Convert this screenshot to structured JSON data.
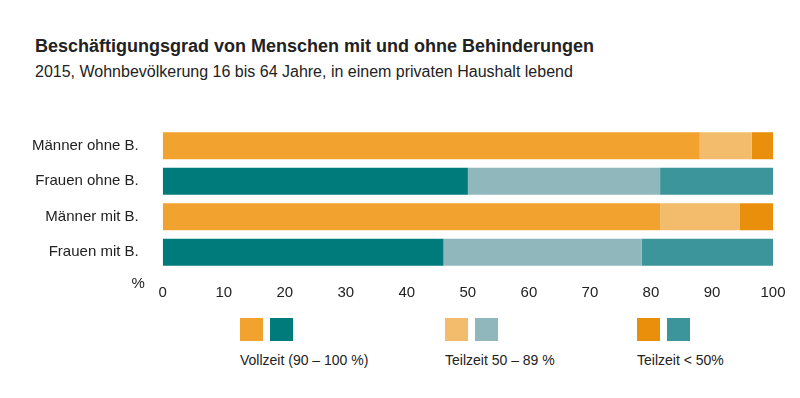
{
  "chart_data": {
    "type": "bar",
    "orientation": "horizontal",
    "stacked": true,
    "title": "Beschäftigungsgrad von Menschen mit und ohne Behinderungen",
    "subtitle": "2015, Wohnbevölkerung 16 bis 64 Jahre, in einem privaten Haushalt lebend",
    "xlabel": "%",
    "categories": [
      "Männer ohne B.",
      "Frauen ohne B.",
      "Männer mit B.",
      "Frauen mit B."
    ],
    "series": [
      {
        "name": "Vollzeit (90 – 100 %)",
        "colors": [
          "#f2a22e",
          "#007b7b",
          "#f2a22e",
          "#007b7b"
        ],
        "values": [
          88,
          50,
          81.5,
          46
        ]
      },
      {
        "name": "Teilzeit 50 – 89 %",
        "colors": [
          "#f3bc6c",
          "#90b7bb",
          "#f3bc6c",
          "#90b7bb"
        ],
        "values": [
          8.5,
          31.5,
          13,
          32.5
        ]
      },
      {
        "name": "Teilzeit < 50%",
        "colors": [
          "#e98f0c",
          "#3b959a",
          "#e98f0c",
          "#3b959a"
        ],
        "values": [
          3.5,
          18.5,
          5.5,
          21.5
        ]
      }
    ],
    "xlim": [
      0,
      100
    ],
    "xticks": [
      0,
      10,
      20,
      30,
      40,
      50,
      60,
      70,
      80,
      90,
      100
    ],
    "grid": false,
    "legend": "bottom"
  }
}
